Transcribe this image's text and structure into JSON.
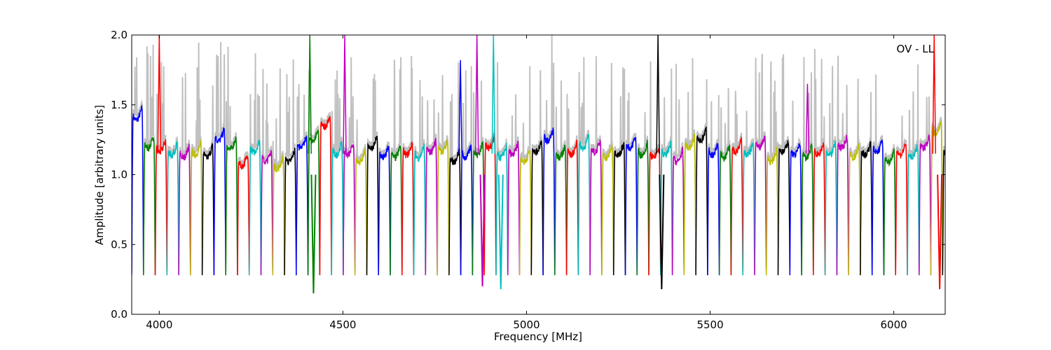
{
  "chart_data": {
    "type": "line",
    "title": "",
    "annotation": "OV - LL",
    "xlabel": "Frequency [MHz]",
    "ylabel": "Amplitude [arbitrary units]",
    "xlim": [
      3925,
      6140
    ],
    "ylim": [
      0.0,
      2.0
    ],
    "xticks": [
      4000,
      4500,
      5000,
      5500,
      6000
    ],
    "yticks": [
      0.0,
      0.5,
      1.0,
      1.5,
      2.0
    ],
    "ytick_labels": [
      "0.0",
      "0.5",
      "1.0",
      "1.5",
      "2.0"
    ],
    "grid": false,
    "legend": "none",
    "background_color": "#c0c0c0",
    "band_start_mhz": 3925,
    "band_width_mhz": 32,
    "band_colors": [
      "#0000ff",
      "#008000",
      "#ff0000",
      "#00bfbf",
      "#bf00bf",
      "#bfbf00",
      "#000000"
    ],
    "band_levels": [
      1.45,
      1.25,
      1.22,
      1.2,
      1.18,
      1.2,
      1.18,
      1.3,
      1.24,
      1.12,
      1.22,
      1.15,
      1.1,
      1.15,
      1.25,
      1.3,
      1.4,
      1.2,
      1.2,
      1.15,
      1.25,
      1.18,
      1.18,
      1.2,
      1.18,
      1.22,
      1.22,
      1.15,
      1.18,
      1.2,
      1.25,
      1.18,
      1.2,
      1.15,
      1.22,
      1.3,
      1.18,
      1.2,
      1.25,
      1.22,
      1.18,
      1.2,
      1.25,
      1.2,
      1.18,
      1.2,
      1.15,
      1.25,
      1.3,
      1.2,
      1.18,
      1.22,
      1.2,
      1.25,
      1.15,
      1.22,
      1.2,
      1.18,
      1.2,
      1.2,
      1.25,
      1.18,
      1.2,
      1.22,
      1.15,
      1.2,
      1.18,
      1.25,
      1.35,
      1.2
    ],
    "band_min": 0.28,
    "spikes": [
      {
        "x": 4000,
        "y": 2.0,
        "color": "#ff0000"
      },
      {
        "x": 4410,
        "y": 2.0,
        "color": "#008000"
      },
      {
        "x": 4505,
        "y": 2.0,
        "color": "#bf00bf"
      },
      {
        "x": 4820,
        "y": 1.82,
        "color": "#0000ff"
      },
      {
        "x": 4865,
        "y": 2.0,
        "color": "#bf00bf"
      },
      {
        "x": 4910,
        "y": 2.0,
        "color": "#00bfbf"
      },
      {
        "x": 5358,
        "y": 2.0,
        "color": "#000000"
      },
      {
        "x": 5765,
        "y": 1.65,
        "color": "#bf00bf"
      },
      {
        "x": 6110,
        "y": 2.0,
        "color": "#ff0000"
      }
    ],
    "dips": [
      {
        "x": 4420,
        "y": 0.15,
        "color": "#008000"
      },
      {
        "x": 4880,
        "y": 0.2,
        "color": "#bf00bf"
      },
      {
        "x": 4930,
        "y": 0.18,
        "color": "#00bfbf"
      },
      {
        "x": 5368,
        "y": 0.18,
        "color": "#000000"
      },
      {
        "x": 6125,
        "y": 0.18,
        "color": "#ff0000"
      }
    ]
  }
}
